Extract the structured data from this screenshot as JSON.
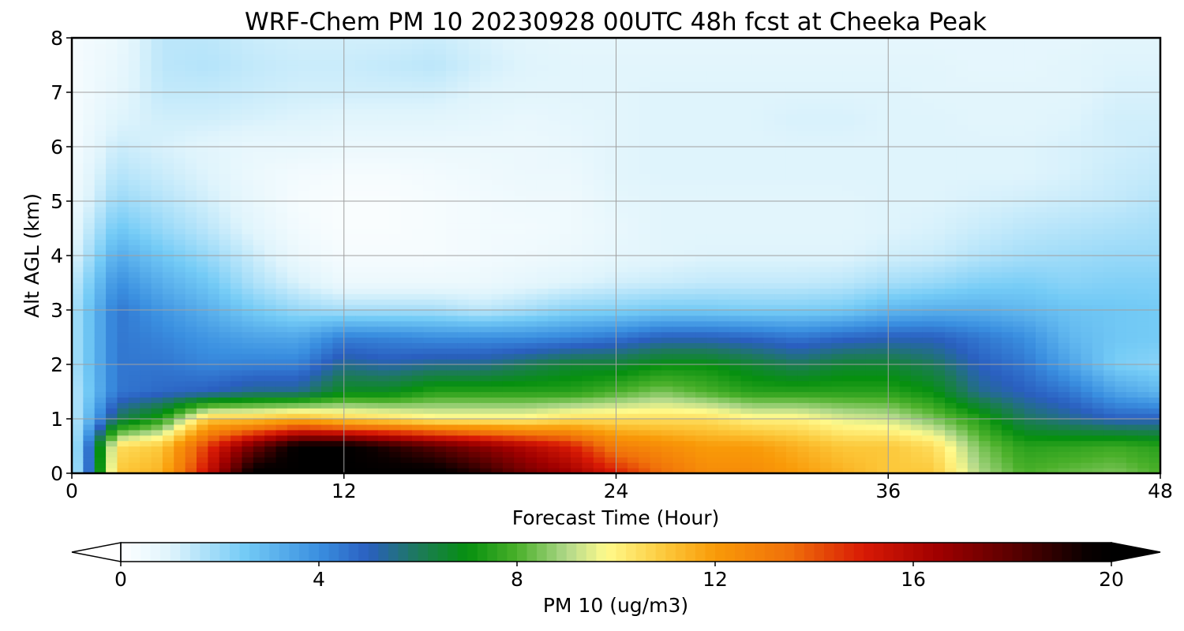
{
  "chart_data": {
    "type": "heatmap",
    "title": "WRF-Chem PM 10  20230928 00UTC 48h fcst at Cheeka Peak",
    "xlabel": "Forecast Time (Hour)",
    "ylabel": "Alt AGL (km)",
    "xlim": [
      0,
      48
    ],
    "ylim": [
      0,
      8
    ],
    "x_ticks": [
      "0",
      "12",
      "24",
      "36",
      "48"
    ],
    "y_ticks": [
      "0",
      "1",
      "2",
      "3",
      "4",
      "5",
      "6",
      "7",
      "8"
    ],
    "grid": true,
    "colorbar": {
      "label": "PM 10  (ug/m3)",
      "min": 0,
      "max": 20,
      "ticks": [
        "0",
        "4",
        "8",
        "12",
        "16",
        "20"
      ],
      "extend": "both",
      "colormap": [
        [
          0,
          "#ffffff"
        ],
        [
          1.0,
          "#dff4fc"
        ],
        [
          2.5,
          "#74cbf6"
        ],
        [
          4.0,
          "#3a8fe0"
        ],
        [
          5.0,
          "#2a5fc0"
        ],
        [
          6.0,
          "#1d7a5a"
        ],
        [
          7.0,
          "#06900f"
        ],
        [
          8.0,
          "#4ab02a"
        ],
        [
          9.0,
          "#b0d88a"
        ],
        [
          9.8,
          "#fffa8c"
        ],
        [
          11.0,
          "#fcc83a"
        ],
        [
          12.0,
          "#f99a08"
        ],
        [
          13.5,
          "#f0700a"
        ],
        [
          15.0,
          "#d81a05"
        ],
        [
          16.5,
          "#a00000"
        ],
        [
          18.0,
          "#5a0000"
        ],
        [
          19.5,
          "#0a0000"
        ],
        [
          20,
          "#000000"
        ]
      ]
    },
    "series": [
      {
        "time_h": 0,
        "profile": [
          0.8,
          1.0,
          1.2,
          1.4,
          1.6,
          1.6,
          1.6,
          1.3,
          0.9,
          0.7,
          0.5,
          0.4,
          0.3,
          0.3,
          0.3,
          0.3,
          0.3
        ]
      },
      {
        "time_h": 2,
        "profile": [
          11.0,
          10.5,
          6.0,
          4.5,
          4.5,
          4.5,
          4.5,
          4.0,
          3.3,
          2.6,
          2.0,
          1.6,
          1.3,
          1.0,
          0.8,
          0.7,
          0.6
        ]
      },
      {
        "time_h": 4,
        "profile": [
          11.5,
          11.0,
          7.5,
          4.8,
          4.5,
          4.2,
          3.8,
          3.2,
          2.6,
          2.0,
          1.6,
          1.3,
          1.1,
          1.2,
          1.4,
          1.5,
          1.5
        ]
      },
      {
        "time_h": 6,
        "profile": [
          15.5,
          14.5,
          11.0,
          5.0,
          4.2,
          3.8,
          3.2,
          2.6,
          2.0,
          1.5,
          1.2,
          1.0,
          0.9,
          1.2,
          1.4,
          1.6,
          1.5
        ]
      },
      {
        "time_h": 8,
        "profile": [
          20.0,
          17.5,
          11.0,
          5.5,
          4.3,
          3.5,
          2.5,
          1.7,
          1.3,
          0.9,
          0.7,
          0.6,
          0.7,
          1.1,
          1.3,
          1.4,
          1.3
        ]
      },
      {
        "time_h": 10,
        "profile": [
          20.0,
          20.0,
          11.5,
          5.5,
          4.3,
          3.4,
          2.0,
          1.1,
          0.6,
          0.4,
          0.3,
          0.4,
          0.7,
          1.0,
          1.2,
          1.3,
          1.2
        ]
      },
      {
        "time_h": 12,
        "profile": [
          20.0,
          20.0,
          10.8,
          6.8,
          5.5,
          4.3,
          1.8,
          0.6,
          0.3,
          0.2,
          0.2,
          0.3,
          0.6,
          0.9,
          1.2,
          1.3,
          1.2
        ]
      },
      {
        "time_h": 14,
        "profile": [
          20.0,
          19.0,
          10.5,
          6.8,
          5.2,
          4.2,
          1.8,
          0.6,
          0.3,
          0.2,
          0.2,
          0.3,
          0.6,
          0.9,
          1.2,
          1.4,
          1.2
        ]
      },
      {
        "time_h": 16,
        "profile": [
          20.0,
          18.0,
          10.0,
          7.5,
          5.5,
          4.0,
          1.8,
          0.6,
          0.3,
          0.3,
          0.3,
          0.4,
          0.6,
          0.9,
          1.2,
          1.5,
          1.3
        ]
      },
      {
        "time_h": 18,
        "profile": [
          19.0,
          17.0,
          10.0,
          7.5,
          5.5,
          4.0,
          1.5,
          0.6,
          0.4,
          0.4,
          0.4,
          0.5,
          0.6,
          0.8,
          1.0,
          1.2,
          1.1
        ]
      },
      {
        "time_h": 20,
        "profile": [
          17.5,
          16.0,
          10.0,
          7.5,
          6.0,
          4.0,
          1.8,
          0.8,
          0.5,
          0.4,
          0.5,
          0.6,
          0.6,
          0.7,
          0.9,
          1.0,
          0.9
        ]
      },
      {
        "time_h": 22,
        "profile": [
          16.5,
          15.0,
          10.5,
          7.5,
          6.5,
          4.2,
          2.2,
          1.0,
          0.6,
          0.5,
          0.5,
          0.6,
          0.7,
          0.8,
          0.9,
          0.9,
          0.8
        ]
      },
      {
        "time_h": 24,
        "profile": [
          15.0,
          13.0,
          10.5,
          8.0,
          6.5,
          4.5,
          2.3,
          1.2,
          0.8,
          0.7,
          0.8,
          0.9,
          0.9,
          0.9,
          0.9,
          0.9,
          0.8
        ]
      },
      {
        "time_h": 26,
        "profile": [
          13.5,
          12.5,
          10.5,
          8.5,
          7.0,
          5.0,
          2.5,
          1.3,
          0.9,
          0.9,
          0.9,
          1.0,
          1.0,
          1.0,
          1.0,
          0.9,
          0.8
        ]
      },
      {
        "time_h": 28,
        "profile": [
          12.5,
          12.0,
          10.5,
          8.0,
          7.0,
          5.0,
          2.5,
          1.4,
          1.0,
          0.9,
          0.9,
          1.0,
          1.0,
          1.0,
          1.0,
          0.9,
          0.8
        ]
      },
      {
        "time_h": 30,
        "profile": [
          12.5,
          12.0,
          10.0,
          7.5,
          6.5,
          4.8,
          2.4,
          1.4,
          1.0,
          0.9,
          0.9,
          1.0,
          1.0,
          1.0,
          1.0,
          0.9,
          0.8
        ]
      },
      {
        "time_h": 32,
        "profile": [
          12.0,
          11.5,
          10.0,
          7.5,
          6.0,
          4.5,
          2.4,
          1.4,
          1.0,
          0.9,
          0.9,
          1.0,
          1.0,
          1.1,
          1.0,
          0.9,
          0.8
        ]
      },
      {
        "time_h": 34,
        "profile": [
          11.5,
          11.0,
          9.5,
          7.5,
          6.5,
          4.8,
          2.5,
          1.5,
          1.0,
          0.9,
          0.9,
          1.0,
          1.0,
          1.1,
          1.0,
          0.9,
          0.8
        ]
      },
      {
        "time_h": 36,
        "profile": [
          11.0,
          11.0,
          9.3,
          7.5,
          6.5,
          5.0,
          3.0,
          1.8,
          1.2,
          1.0,
          1.0,
          1.0,
          1.0,
          1.0,
          1.0,
          0.9,
          0.8
        ]
      },
      {
        "time_h": 38,
        "profile": [
          11.0,
          10.5,
          8.5,
          7.0,
          6.0,
          5.0,
          3.2,
          2.0,
          1.3,
          1.1,
          1.0,
          1.0,
          1.0,
          1.0,
          0.9,
          0.9,
          0.8
        ]
      },
      {
        "time_h": 40,
        "profile": [
          9.0,
          8.5,
          7.5,
          5.5,
          5.0,
          4.5,
          3.2,
          2.3,
          1.6,
          1.3,
          1.1,
          1.0,
          1.0,
          0.9,
          0.9,
          0.8,
          0.8
        ]
      },
      {
        "time_h": 42,
        "profile": [
          8.0,
          7.5,
          6.0,
          5.0,
          4.5,
          4.0,
          3.0,
          2.4,
          1.8,
          1.5,
          1.2,
          1.0,
          1.0,
          0.9,
          0.9,
          0.8,
          0.8
        ]
      },
      {
        "time_h": 44,
        "profile": [
          8.3,
          7.6,
          5.5,
          4.5,
          3.5,
          3.0,
          2.7,
          2.2,
          1.9,
          1.6,
          1.3,
          1.1,
          1.1,
          1.0,
          0.9,
          0.9,
          0.8
        ]
      },
      {
        "time_h": 46,
        "profile": [
          8.5,
          7.8,
          5.0,
          3.5,
          2.4,
          2.6,
          2.6,
          2.3,
          2.0,
          1.7,
          1.4,
          1.3,
          1.2,
          1.2,
          1.1,
          1.0,
          0.9
        ]
      },
      {
        "time_h": 48,
        "profile": [
          8.0,
          7.5,
          5.0,
          3.0,
          2.2,
          2.5,
          2.5,
          2.3,
          2.0,
          1.8,
          1.6,
          1.4,
          1.3,
          1.2,
          1.1,
          1.0,
          0.9
        ]
      }
    ],
    "profile_altitudes_km": [
      0,
      0.5,
      1.0,
      1.5,
      2.0,
      2.5,
      3.0,
      3.5,
      4.0,
      4.5,
      5.0,
      5.5,
      6.0,
      6.5,
      7.0,
      7.5,
      8.0
    ]
  }
}
